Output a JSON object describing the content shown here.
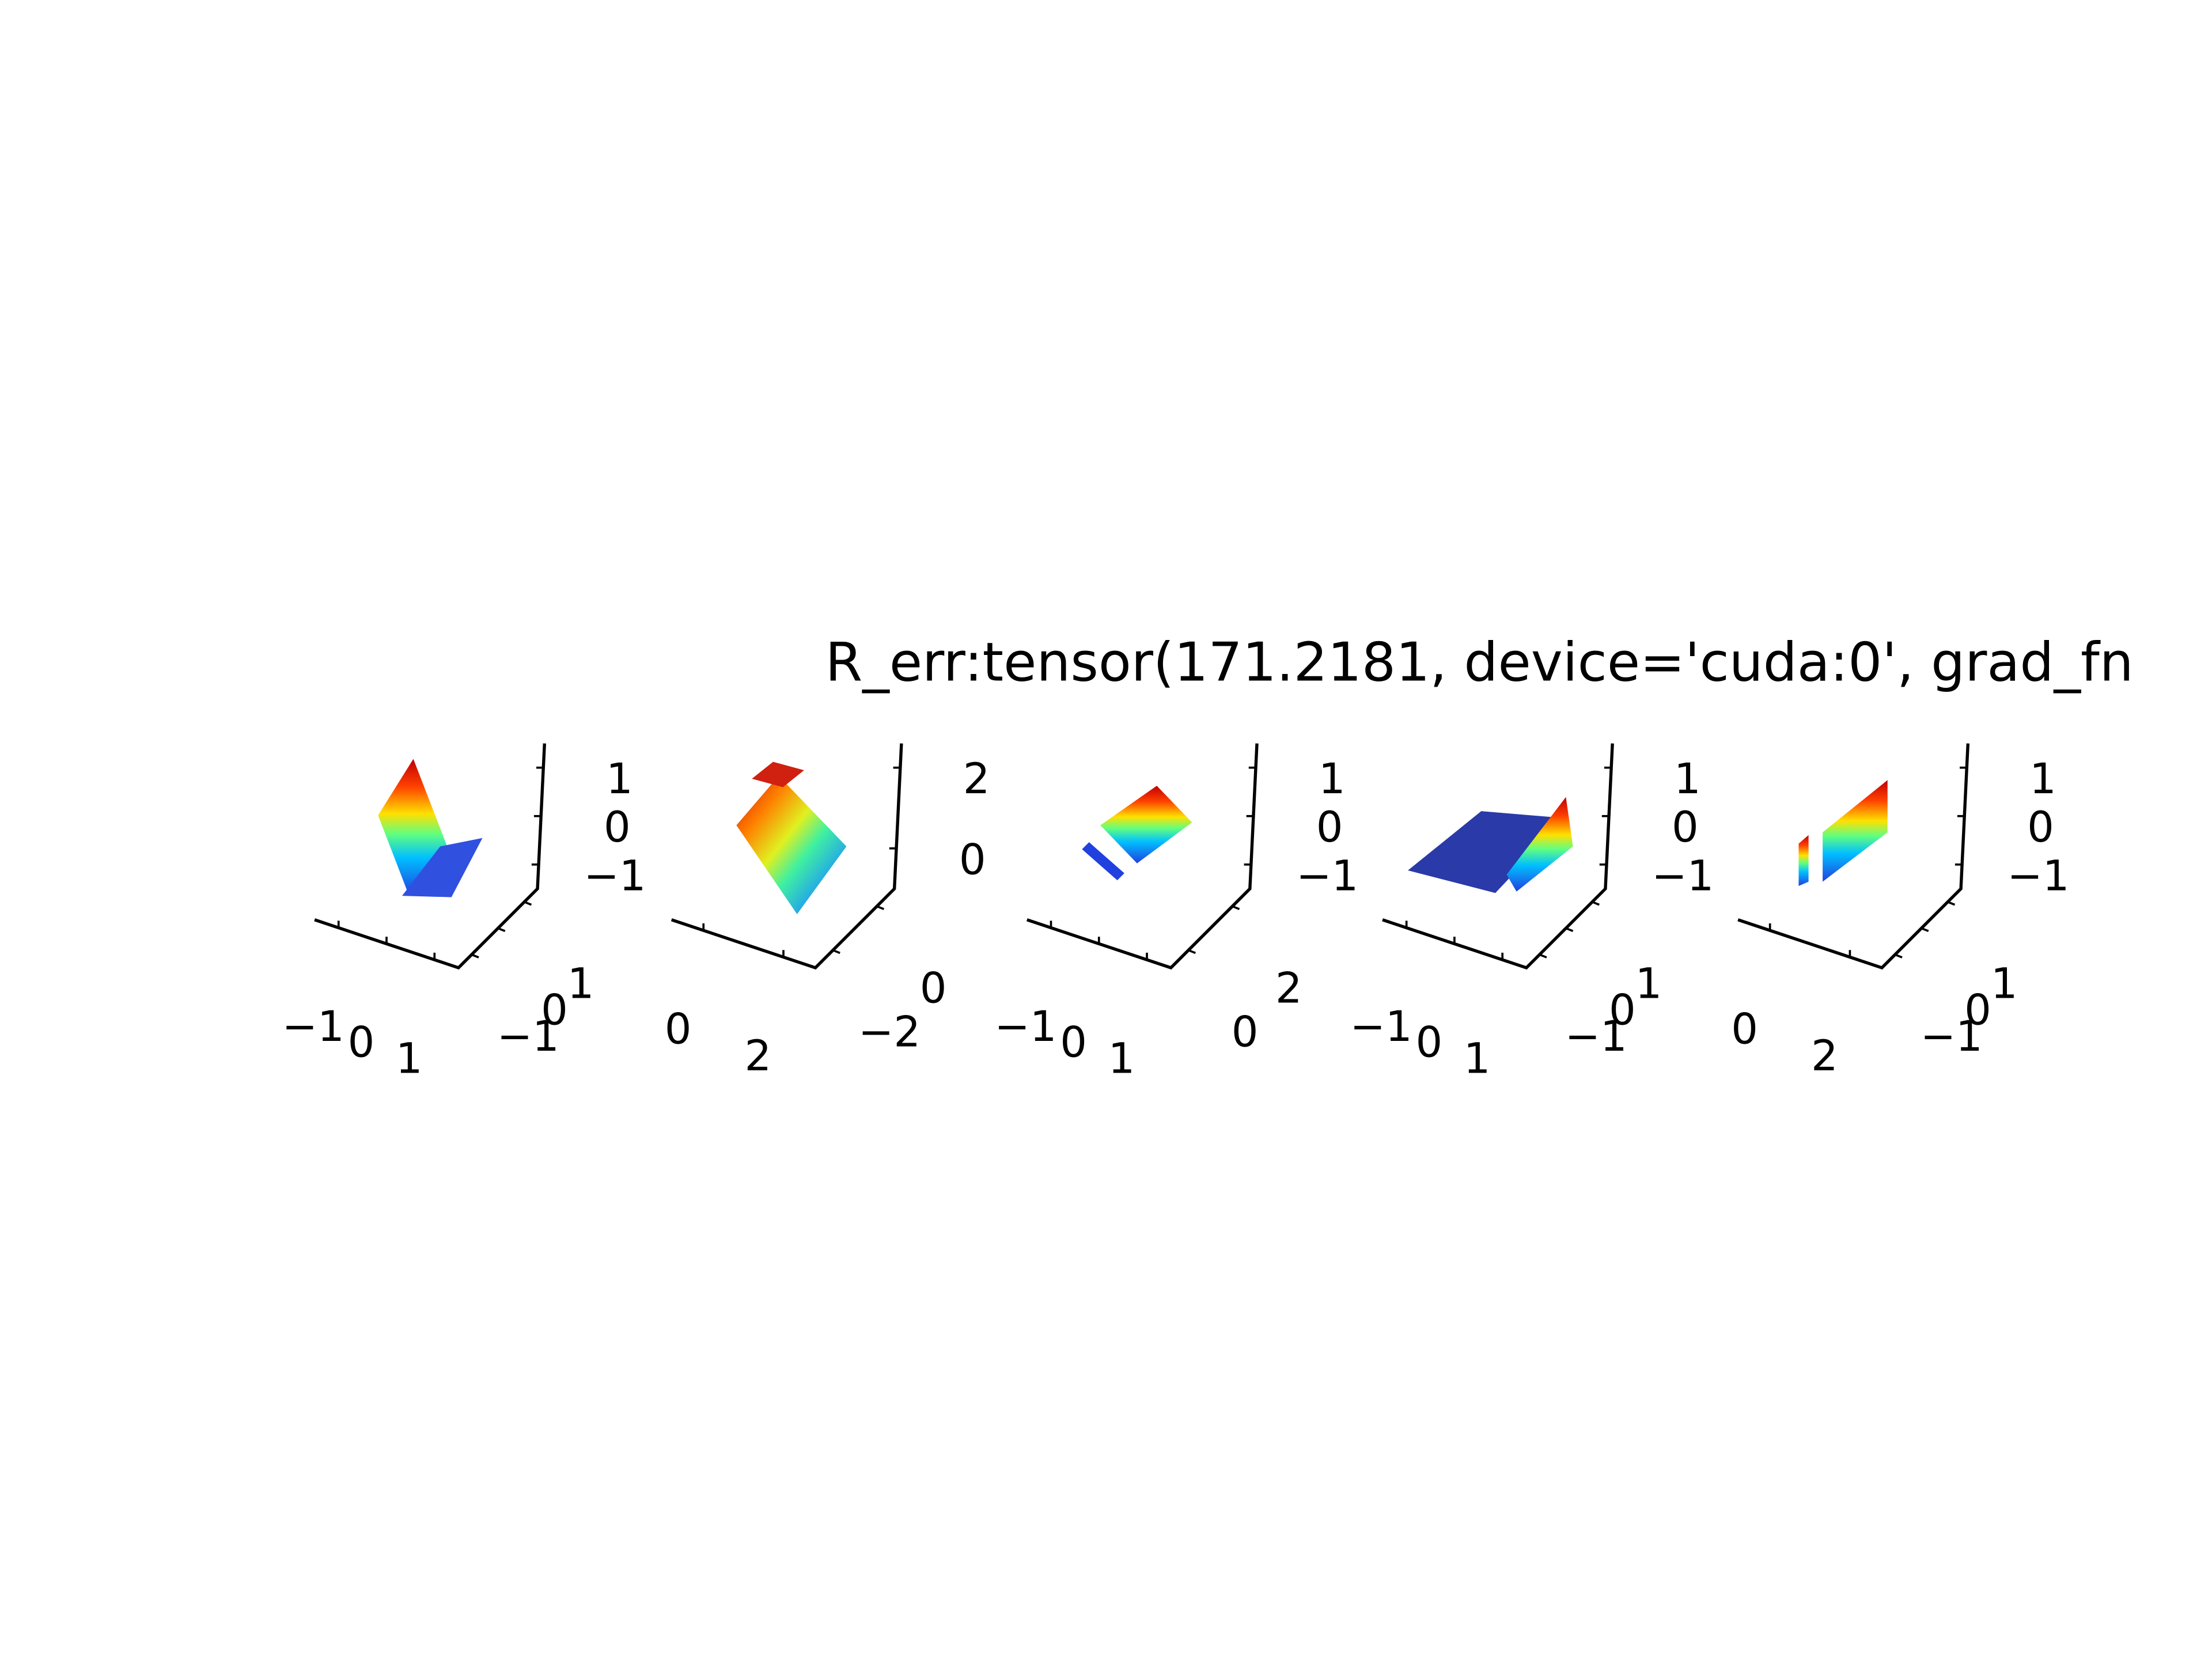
{
  "chart_data": [
    {
      "type": "scatter3d",
      "xlim": [
        -1.5,
        1.5
      ],
      "ylim": [
        -1.5,
        1.5
      ],
      "zlim": [
        -1.5,
        1.5
      ],
      "xticks": [
        {
          "value": -1,
          "label": "−1"
        },
        0,
        1
      ],
      "yticks": [
        {
          "value": -1,
          "label": "−1"
        },
        0,
        1
      ],
      "zticks": [
        {
          "value": -1,
          "label": "−1"
        },
        0,
        1
      ]
    },
    {
      "type": "scatter3d",
      "xlim": [
        -0.8,
        2.8
      ],
      "ylim": [
        -2.8,
        0.8
      ],
      "zlim": [
        -1,
        2.6
      ],
      "xticks": [
        0,
        2
      ],
      "yticks": [
        {
          "value": -2,
          "label": "−2"
        },
        0
      ],
      "zticks": [
        0,
        2
      ]
    },
    {
      "type": "scatter3d",
      "title": "R_err:tensor(171.2181, device='cuda:0', grad_fn",
      "xlim": [
        -1.5,
        1.5
      ],
      "ylim": [
        -0.8,
        2.8
      ],
      "zlim": [
        -1.5,
        1.5
      ],
      "xticks": [
        {
          "value": -1,
          "label": "−1"
        },
        0,
        1
      ],
      "yticks": [
        0,
        2
      ],
      "zticks": [
        {
          "value": -1,
          "label": "−1"
        },
        0,
        1
      ]
    },
    {
      "type": "scatter3d",
      "xlim": [
        -1.5,
        1.5
      ],
      "ylim": [
        -1.5,
        1.5
      ],
      "zlim": [
        -1.5,
        1.5
      ],
      "xticks": [
        {
          "value": -1,
          "label": "−1"
        },
        0,
        1
      ],
      "yticks": [
        {
          "value": -1,
          "label": "−1"
        },
        0,
        1
      ],
      "zticks": [
        {
          "value": -1,
          "label": "−1"
        },
        0,
        1
      ]
    },
    {
      "type": "scatter3d",
      "xlim": [
        -0.8,
        2.8
      ],
      "ylim": [
        -1.5,
        1.5
      ],
      "zlim": [
        -1.5,
        1.5
      ],
      "xticks": [
        0,
        2
      ],
      "yticks": [
        {
          "value": -1,
          "label": "−1"
        },
        0,
        1
      ],
      "zticks": [
        {
          "value": -1,
          "label": "−1"
        },
        0,
        1
      ]
    }
  ]
}
